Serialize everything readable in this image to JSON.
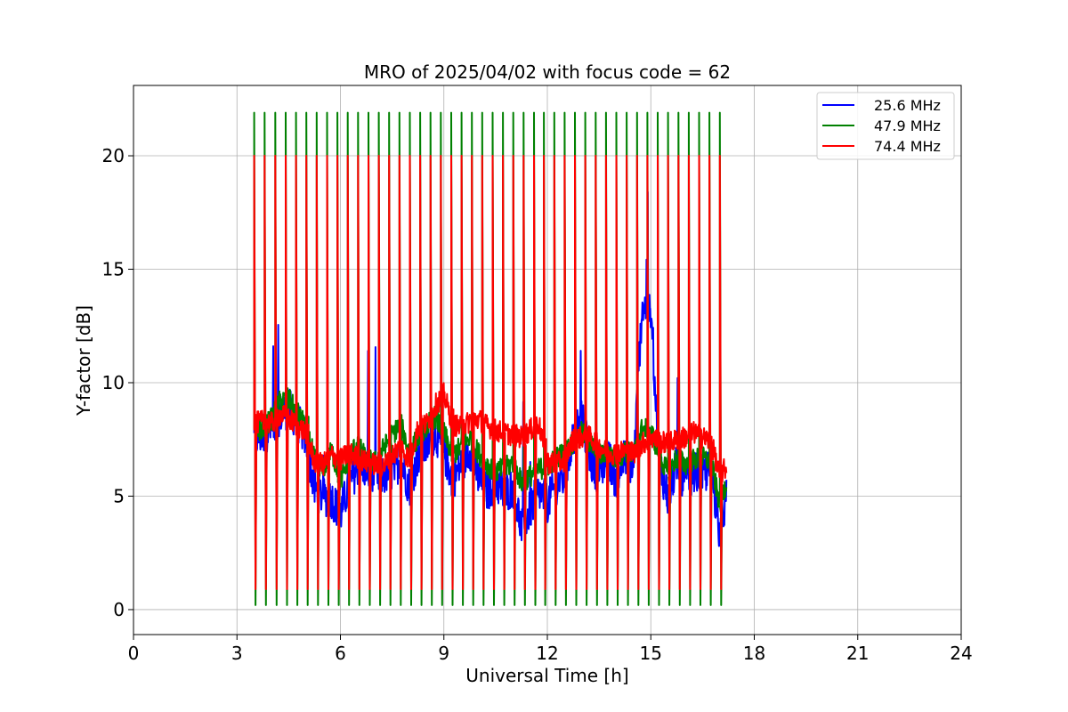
{
  "chart_data": {
    "type": "line",
    "title": "MRO of 2025/04/02 with focus code = 62",
    "xlabel": "Universal Time [h]",
    "ylabel": "Y-factor [dB]",
    "xlim": [
      0,
      24
    ],
    "ylim": [
      -1.1,
      23.1
    ],
    "xticks": [
      0,
      3,
      6,
      9,
      12,
      15,
      18,
      21,
      24
    ],
    "yticks": [
      0,
      5,
      10,
      15,
      20
    ],
    "grid": true,
    "legend_position": "top-right",
    "cycle_period_h": 0.3,
    "series": [
      {
        "name": "25.6 MHz",
        "color": "#0000ff",
        "x": [
          3.5,
          3.75,
          4.0,
          4.25,
          4.5,
          4.75,
          5.0,
          5.25,
          5.5,
          5.75,
          6.0,
          6.25,
          6.5,
          6.75,
          7.0,
          7.25,
          7.5,
          7.75,
          8.0,
          8.25,
          8.5,
          8.75,
          9.0,
          9.25,
          9.5,
          9.75,
          10.0,
          10.25,
          10.5,
          10.75,
          11.0,
          11.25,
          11.5,
          11.75,
          12.0,
          12.25,
          12.5,
          12.75,
          13.0,
          13.25,
          13.5,
          13.75,
          14.0,
          14.25,
          14.5,
          14.75,
          15.0,
          15.25,
          15.5,
          15.75,
          16.0,
          16.25,
          16.5,
          16.75,
          17.0,
          17.2
        ],
        "y": [
          7.5,
          7.7,
          8.0,
          8.6,
          8.9,
          8.3,
          7.5,
          5.3,
          5.0,
          4.9,
          4.2,
          5.5,
          6.3,
          6.2,
          5.8,
          5.9,
          6.1,
          6.6,
          5.4,
          6.8,
          7.2,
          7.8,
          7.0,
          5.7,
          6.4,
          7.1,
          5.8,
          5.2,
          5.6,
          5.1,
          5.4,
          3.6,
          4.4,
          5.2,
          4.7,
          5.5,
          5.8,
          7.6,
          8.4,
          6.6,
          5.9,
          6.9,
          5.6,
          6.8,
          6.2,
          13.5,
          13.0,
          6.5,
          4.9,
          6.4,
          5.6,
          6.1,
          5.9,
          6.3,
          3.3,
          5.1
        ]
      },
      {
        "name": "47.9 MHz",
        "color": "#008000",
        "x": [
          3.5,
          3.75,
          4.0,
          4.25,
          4.5,
          4.75,
          5.0,
          5.25,
          5.5,
          5.75,
          6.0,
          6.25,
          6.5,
          6.75,
          7.0,
          7.25,
          7.5,
          7.75,
          8.0,
          8.25,
          8.5,
          8.75,
          9.0,
          9.25,
          9.5,
          9.75,
          10.0,
          10.25,
          10.5,
          10.75,
          11.0,
          11.25,
          11.5,
          11.75,
          12.0,
          12.25,
          12.5,
          12.75,
          13.0,
          13.25,
          13.5,
          13.75,
          14.0,
          14.25,
          14.5,
          14.75,
          15.0,
          15.25,
          15.5,
          15.75,
          16.0,
          16.25,
          16.5,
          16.75,
          17.0,
          17.2
        ],
        "y": [
          7.8,
          8.0,
          8.4,
          9.2,
          9.3,
          8.6,
          8.1,
          6.6,
          6.2,
          7.0,
          5.6,
          6.8,
          7.3,
          6.6,
          6.5,
          7.1,
          7.7,
          8.2,
          6.9,
          7.6,
          8.1,
          8.5,
          7.8,
          6.8,
          7.2,
          7.6,
          6.9,
          6.4,
          6.1,
          6.2,
          6.5,
          5.6,
          5.9,
          6.2,
          6.3,
          6.7,
          6.9,
          7.4,
          7.8,
          7.3,
          6.8,
          6.9,
          6.6,
          7.0,
          6.8,
          8.0,
          7.9,
          6.8,
          6.0,
          6.7,
          6.4,
          6.6,
          6.7,
          6.5,
          4.6,
          5.7
        ]
      },
      {
        "name": "74.4 MHz",
        "color": "#ff0000",
        "x": [
          3.5,
          3.75,
          4.0,
          4.25,
          4.5,
          4.75,
          5.0,
          5.25,
          5.5,
          5.75,
          6.0,
          6.25,
          6.5,
          6.75,
          7.0,
          7.25,
          7.5,
          7.75,
          8.0,
          8.25,
          8.5,
          8.75,
          9.0,
          9.25,
          9.5,
          9.75,
          10.0,
          10.25,
          10.5,
          10.75,
          11.0,
          11.25,
          11.5,
          11.75,
          12.0,
          12.25,
          12.5,
          12.75,
          13.0,
          13.25,
          13.5,
          13.75,
          14.0,
          14.25,
          14.5,
          14.75,
          15.0,
          15.25,
          15.5,
          15.75,
          16.0,
          16.25,
          16.5,
          16.75,
          17.0,
          17.2
        ],
        "y": [
          8.2,
          8.3,
          8.2,
          8.6,
          8.4,
          8.1,
          7.8,
          6.5,
          6.4,
          6.8,
          6.6,
          6.9,
          6.7,
          6.5,
          6.4,
          6.3,
          6.8,
          7.2,
          6.6,
          8.0,
          8.2,
          9.0,
          9.5,
          8.2,
          8.0,
          8.3,
          8.4,
          8.1,
          7.9,
          7.8,
          7.7,
          7.6,
          7.9,
          8.2,
          6.5,
          6.4,
          6.6,
          7.5,
          7.6,
          7.6,
          7.2,
          6.9,
          6.9,
          7.0,
          6.9,
          7.3,
          7.6,
          7.4,
          7.3,
          7.5,
          7.6,
          7.8,
          7.6,
          7.4,
          5.9,
          6.3
        ]
      }
    ],
    "spikes": [
      {
        "series": "47.9 MHz",
        "high": 21.9,
        "low": 0.2
      },
      {
        "series": "74.4 MHz",
        "high": 20.0,
        "low": 0.9
      }
    ]
  }
}
